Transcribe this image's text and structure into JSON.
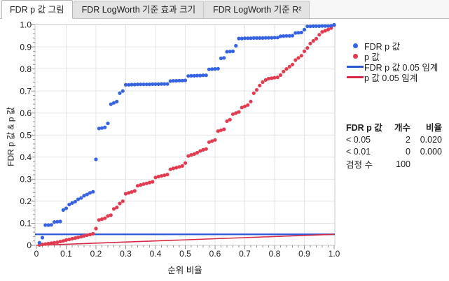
{
  "tabs": [
    {
      "label": "FDR p 값 그림",
      "active": true
    },
    {
      "label": "FDR LogWorth 기준 효과 크기",
      "active": false
    },
    {
      "label": "FDR LogWorth 기준 R²",
      "active": false
    }
  ],
  "chart_data": {
    "type": "scatter",
    "xlabel": "순위 비율",
    "ylabel": "FDR p 값 & p 값",
    "xlim": [
      0,
      1.0
    ],
    "ylim": [
      0,
      1.0
    ],
    "grid": true,
    "ticks": [
      "0",
      "0.1",
      "0.2",
      "0.3",
      "0.4",
      "0.5",
      "0.6",
      "0.7",
      "0.8",
      "0.9",
      "1.0"
    ],
    "tick_step": 0.1,
    "minor_tick_step": 0.02,
    "x_is_rank_fraction": true,
    "n_tests": 100,
    "series": [
      {
        "name": "FDR p 값",
        "color": "#3563e2",
        "values": [
          0.012,
          0.035,
          0.092,
          0.092,
          0.093,
          0.106,
          0.107,
          0.108,
          0.16,
          0.168,
          0.185,
          0.192,
          0.198,
          0.209,
          0.215,
          0.225,
          0.231,
          0.238,
          0.243,
          0.39,
          0.53,
          0.532,
          0.535,
          0.553,
          0.64,
          0.646,
          0.652,
          0.69,
          0.7,
          0.728,
          0.728,
          0.729,
          0.729,
          0.73,
          0.73,
          0.73,
          0.73,
          0.73,
          0.731,
          0.731,
          0.731,
          0.732,
          0.732,
          0.732,
          0.745,
          0.746,
          0.746,
          0.747,
          0.747,
          0.748,
          0.768,
          0.769,
          0.769,
          0.77,
          0.77,
          0.771,
          0.771,
          0.798,
          0.799,
          0.8,
          0.801,
          0.848,
          0.85,
          0.878,
          0.879,
          0.88,
          0.905,
          0.938,
          0.938,
          0.939,
          0.939,
          0.939,
          0.94,
          0.94,
          0.94,
          0.94,
          0.941,
          0.941,
          0.941,
          0.942,
          0.942,
          0.948,
          0.949,
          0.95,
          0.95,
          0.951,
          0.963,
          0.964,
          0.965,
          0.978,
          0.993,
          0.993,
          0.994,
          0.994,
          0.994,
          0.995,
          0.995,
          0.995,
          0.996,
          1.0
        ]
      },
      {
        "name": "p 값",
        "color": "#e23b50",
        "values": [
          0.002,
          0.004,
          0.006,
          0.008,
          0.01,
          0.012,
          0.014,
          0.017,
          0.02,
          0.024,
          0.027,
          0.03,
          0.033,
          0.036,
          0.039,
          0.043,
          0.046,
          0.049,
          0.053,
          0.076,
          0.115,
          0.119,
          0.123,
          0.133,
          0.137,
          0.165,
          0.172,
          0.19,
          0.2,
          0.234,
          0.238,
          0.242,
          0.247,
          0.27,
          0.274,
          0.278,
          0.281,
          0.285,
          0.288,
          0.308,
          0.312,
          0.315,
          0.318,
          0.321,
          0.345,
          0.349,
          0.352,
          0.356,
          0.36,
          0.373,
          0.405,
          0.41,
          0.414,
          0.42,
          0.428,
          0.433,
          0.437,
          0.468,
          0.473,
          0.478,
          0.518,
          0.522,
          0.526,
          0.563,
          0.57,
          0.595,
          0.6,
          0.605,
          0.625,
          0.63,
          0.636,
          0.652,
          0.69,
          0.705,
          0.725,
          0.74,
          0.75,
          0.756,
          0.758,
          0.76,
          0.762,
          0.772,
          0.788,
          0.8,
          0.81,
          0.82,
          0.84,
          0.85,
          0.86,
          0.88,
          0.895,
          0.915,
          0.927,
          0.937,
          0.955,
          0.968,
          0.973,
          0.978,
          0.985,
          0.998
        ]
      }
    ],
    "ref_lines": [
      {
        "name": "FDR p 값 0.05 임계",
        "type": "horizontal",
        "y": 0.05,
        "color": "#2b57d6"
      },
      {
        "name": "p 값 0.05 임계",
        "type": "diagonal",
        "from": [
          0,
          0
        ],
        "to": [
          1.0,
          0.05
        ],
        "color": "#d42a45"
      }
    ]
  },
  "legend": {
    "entries": [
      {
        "label": "FDR p 값",
        "marker": "dot",
        "color": "#3563e2"
      },
      {
        "label": "p 값",
        "marker": "dot",
        "color": "#e23b50"
      },
      {
        "label": "FDR p 값 0.05 임계",
        "marker": "line",
        "color": "#2b57d6"
      },
      {
        "label": "p 값 0.05 임계",
        "marker": "line",
        "color": "#d42a45"
      }
    ]
  },
  "summary_table": {
    "headers": [
      "FDR p 값",
      "개수",
      "비율"
    ],
    "rows": [
      {
        "label": "< 0.05",
        "count": "2",
        "ratio": "0.020"
      },
      {
        "label": "< 0.01",
        "count": "0",
        "ratio": "0.000"
      },
      {
        "label": "검정 수",
        "count": "100",
        "ratio": ""
      }
    ]
  }
}
